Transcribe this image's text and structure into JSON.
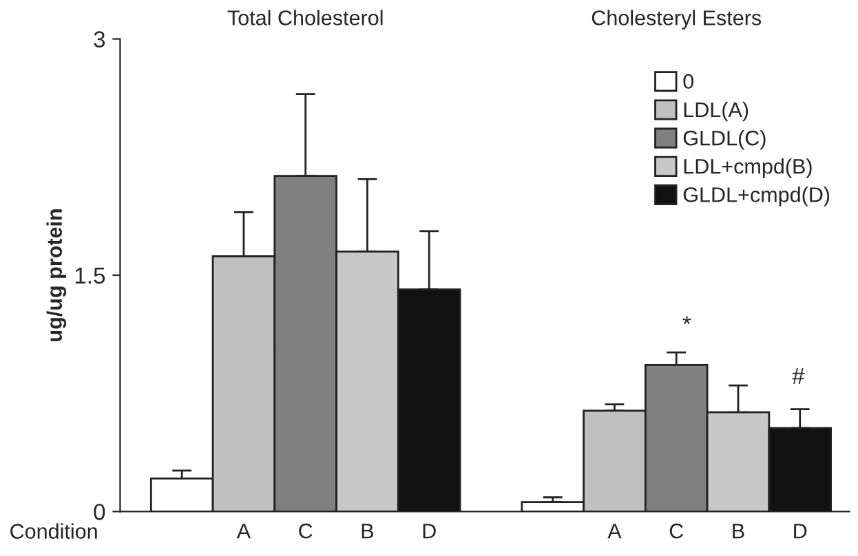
{
  "chart_data": {
    "type": "bar",
    "ylabel": "ug/ug protein",
    "xlabel": "Condition",
    "categories": [
      null,
      "A",
      "C",
      "B",
      "D",
      null,
      null,
      "A",
      "C",
      "B",
      "D"
    ],
    "series": [
      {
        "name": "0",
        "color": "#ffffff",
        "values": [
          0.21,
          null,
          null,
          null,
          null,
          null,
          0.06,
          null,
          null,
          null,
          null
        ],
        "errors": [
          [
            0.21,
            0.26
          ],
          null,
          null,
          null,
          null,
          null,
          [
            0.06,
            0.09
          ],
          null,
          null,
          null,
          null
        ]
      },
      {
        "name": "LDL(A)",
        "color": "#c0c0c0",
        "values": [
          null,
          1.62,
          null,
          null,
          null,
          null,
          null,
          0.64,
          null,
          null,
          null
        ],
        "errors": [
          null,
          [
            1.62,
            1.9
          ],
          null,
          null,
          null,
          null,
          null,
          [
            0.64,
            0.68
          ],
          null,
          null,
          null
        ]
      },
      {
        "name": "GLDL(C)",
        "color": "#808080",
        "values": [
          null,
          null,
          2.13,
          null,
          null,
          null,
          null,
          null,
          0.93,
          null,
          null
        ],
        "errors": [
          null,
          null,
          [
            2.13,
            2.65
          ],
          null,
          null,
          null,
          null,
          null,
          [
            0.93,
            1.01
          ],
          null,
          null
        ]
      },
      {
        "name": "LDL+cmpd(B)",
        "color": "#c8c8c8",
        "values": [
          null,
          null,
          null,
          1.65,
          null,
          null,
          null,
          null,
          null,
          0.63,
          null
        ],
        "errors": [
          null,
          null,
          null,
          [
            1.65,
            2.11
          ],
          null,
          null,
          null,
          null,
          null,
          [
            0.63,
            0.8
          ],
          null
        ]
      },
      {
        "name": "GLDL+cmpd(D)",
        "color": "#111111",
        "values": [
          null,
          null,
          null,
          null,
          1.41,
          null,
          null,
          null,
          null,
          null,
          0.53
        ],
        "errors": [
          null,
          null,
          null,
          null,
          [
            1.41,
            1.78
          ],
          null,
          null,
          null,
          null,
          null,
          [
            0.53,
            0.65
          ]
        ]
      }
    ],
    "annotations": [
      "Total Cholesterol",
      "Cholesteryl Esters",
      "*",
      "#"
    ],
    "ylim": [
      0,
      3
    ],
    "yticks": [
      0,
      1.5,
      3
    ],
    "grid": false,
    "legend": "top right"
  }
}
